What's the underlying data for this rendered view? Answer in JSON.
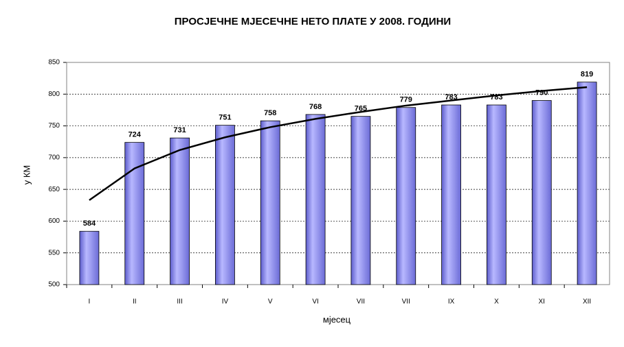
{
  "chart_data": {
    "type": "bar",
    "title": "ПРОСЈЕЧНЕ МЈЕСЕЧНЕ НЕТО ПЛАТЕ У 2008. ГОДИНИ",
    "x_label": "мјесец",
    "y_label": "у КМ",
    "categories": [
      "I",
      "II",
      "III",
      "IV",
      "V",
      "VI",
      "VII",
      "VII",
      "IX",
      "X",
      "XI",
      "XII"
    ],
    "values": [
      584,
      724,
      731,
      751,
      758,
      768,
      765,
      779,
      783,
      783,
      790,
      819
    ],
    "color": "#9999ff",
    "trendline": {
      "values": [
        633,
        683,
        712,
        732,
        748,
        761,
        772,
        782,
        790,
        798,
        805,
        811
      ],
      "color": "#000000"
    },
    "ylim": [
      500,
      850
    ],
    "yticks": [
      500,
      550,
      600,
      650,
      700,
      750,
      800,
      850
    ],
    "grid": true
  }
}
